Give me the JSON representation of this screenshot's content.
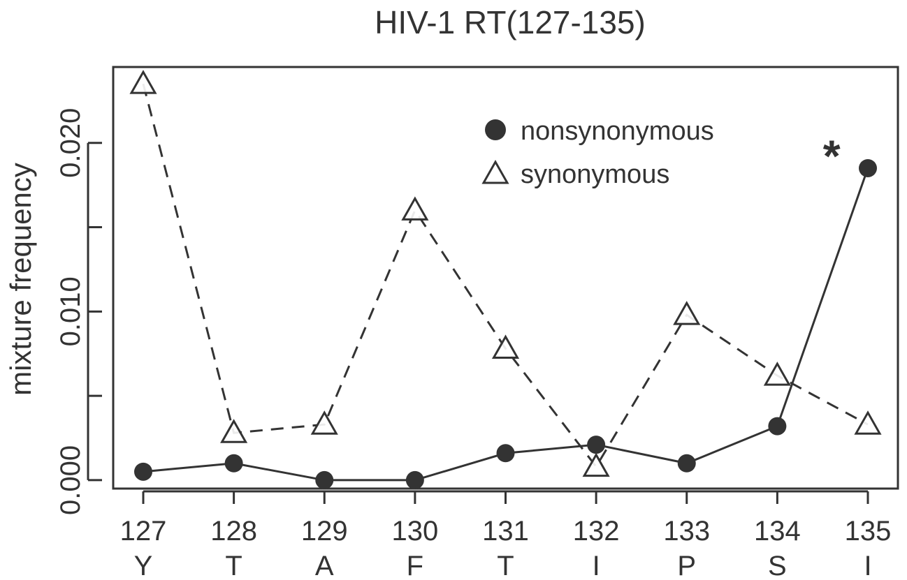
{
  "chart_data": {
    "type": "line",
    "title": "HIV-1 RT(127-135)",
    "xlabel": "",
    "ylabel": "mixture frequency",
    "x": [
      127,
      128,
      129,
      130,
      131,
      132,
      133,
      134,
      135
    ],
    "x_tick_labels": [
      "127",
      "128",
      "129",
      "130",
      "131",
      "132",
      "133",
      "134",
      "135"
    ],
    "x_residue_labels": [
      "Y",
      "T",
      "A",
      "F",
      "T",
      "I",
      "P",
      "S",
      "I"
    ],
    "ylim": [
      -0.0005,
      0.0245
    ],
    "y_ticks": [
      0.0,
      0.005,
      0.01,
      0.015,
      0.02
    ],
    "y_tick_labels": [
      "0.000",
      "",
      "0.010",
      "",
      "0.020"
    ],
    "grid": false,
    "legend_position": "top-right",
    "series": [
      {
        "name": "nonsynonymous",
        "marker": "filled-circle",
        "line_style": "solid",
        "values": [
          0.0005,
          0.001,
          0.0,
          0.0,
          0.0016,
          0.0021,
          0.001,
          0.0032,
          0.0185
        ]
      },
      {
        "name": "synonymous",
        "marker": "open-triangle",
        "line_style": "dashed",
        "values": [
          0.0235,
          0.0028,
          0.0033,
          0.016,
          0.0078,
          0.0008,
          0.0098,
          0.0062,
          0.0033
        ]
      }
    ],
    "annotations": [
      {
        "text": "*",
        "x": 134.6,
        "y": 0.0198
      }
    ],
    "colors": {
      "ink": "#333333",
      "background": "#ffffff"
    }
  }
}
